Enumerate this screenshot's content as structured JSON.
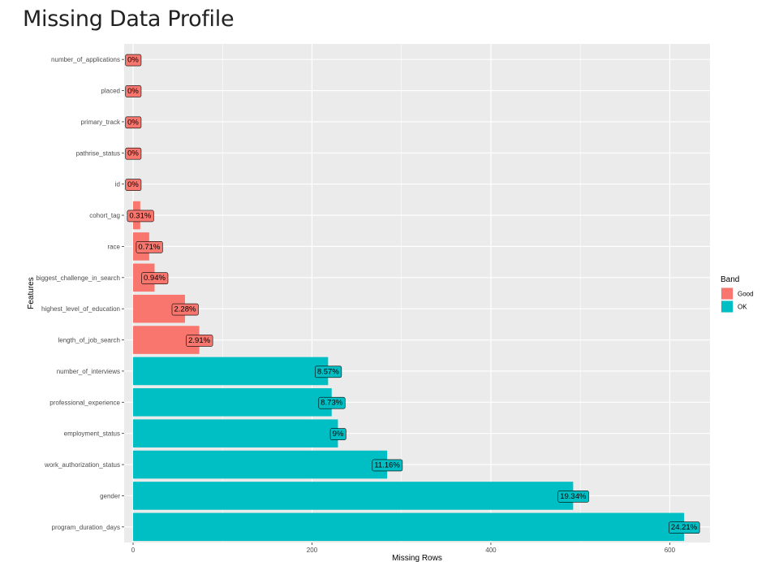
{
  "title": "Missing Data Profile",
  "chart_data": {
    "type": "bar",
    "orientation": "horizontal",
    "xlabel": "Missing Rows",
    "ylabel": "Features",
    "xlim": [
      -10,
      645
    ],
    "x_ticks": [
      0,
      200,
      400,
      600
    ],
    "grid": true,
    "legend": {
      "title": "Band",
      "position": "right",
      "entries": [
        {
          "label": "Good",
          "color": "#F8766D"
        },
        {
          "label": "OK",
          "color": "#00BFC4"
        }
      ]
    },
    "categories": [
      "number_of_applications",
      "placed",
      "primary_track",
      "pathrise_status",
      "id",
      "cohort_tag",
      "race",
      "biggest_challenge_in_search",
      "highest_level_of_education",
      "length_of_job_search",
      "number_of_interviews",
      "professional_experience",
      "employment_status",
      "work_authorization_status",
      "gender",
      "program_duration_days"
    ],
    "values": [
      0,
      0,
      0,
      0,
      0,
      8,
      18,
      24,
      58,
      74,
      218,
      222,
      229,
      284,
      492,
      616
    ],
    "labels": [
      "0%",
      "0%",
      "0%",
      "0%",
      "0%",
      "0.31%",
      "0.71%",
      "0.94%",
      "2.28%",
      "2.91%",
      "8.57%",
      "8.73%",
      "9%",
      "11.16%",
      "19.34%",
      "24.21%"
    ],
    "bands": [
      "Good",
      "Good",
      "Good",
      "Good",
      "Good",
      "Good",
      "Good",
      "Good",
      "Good",
      "Good",
      "OK",
      "OK",
      "OK",
      "OK",
      "OK",
      "OK"
    ]
  }
}
